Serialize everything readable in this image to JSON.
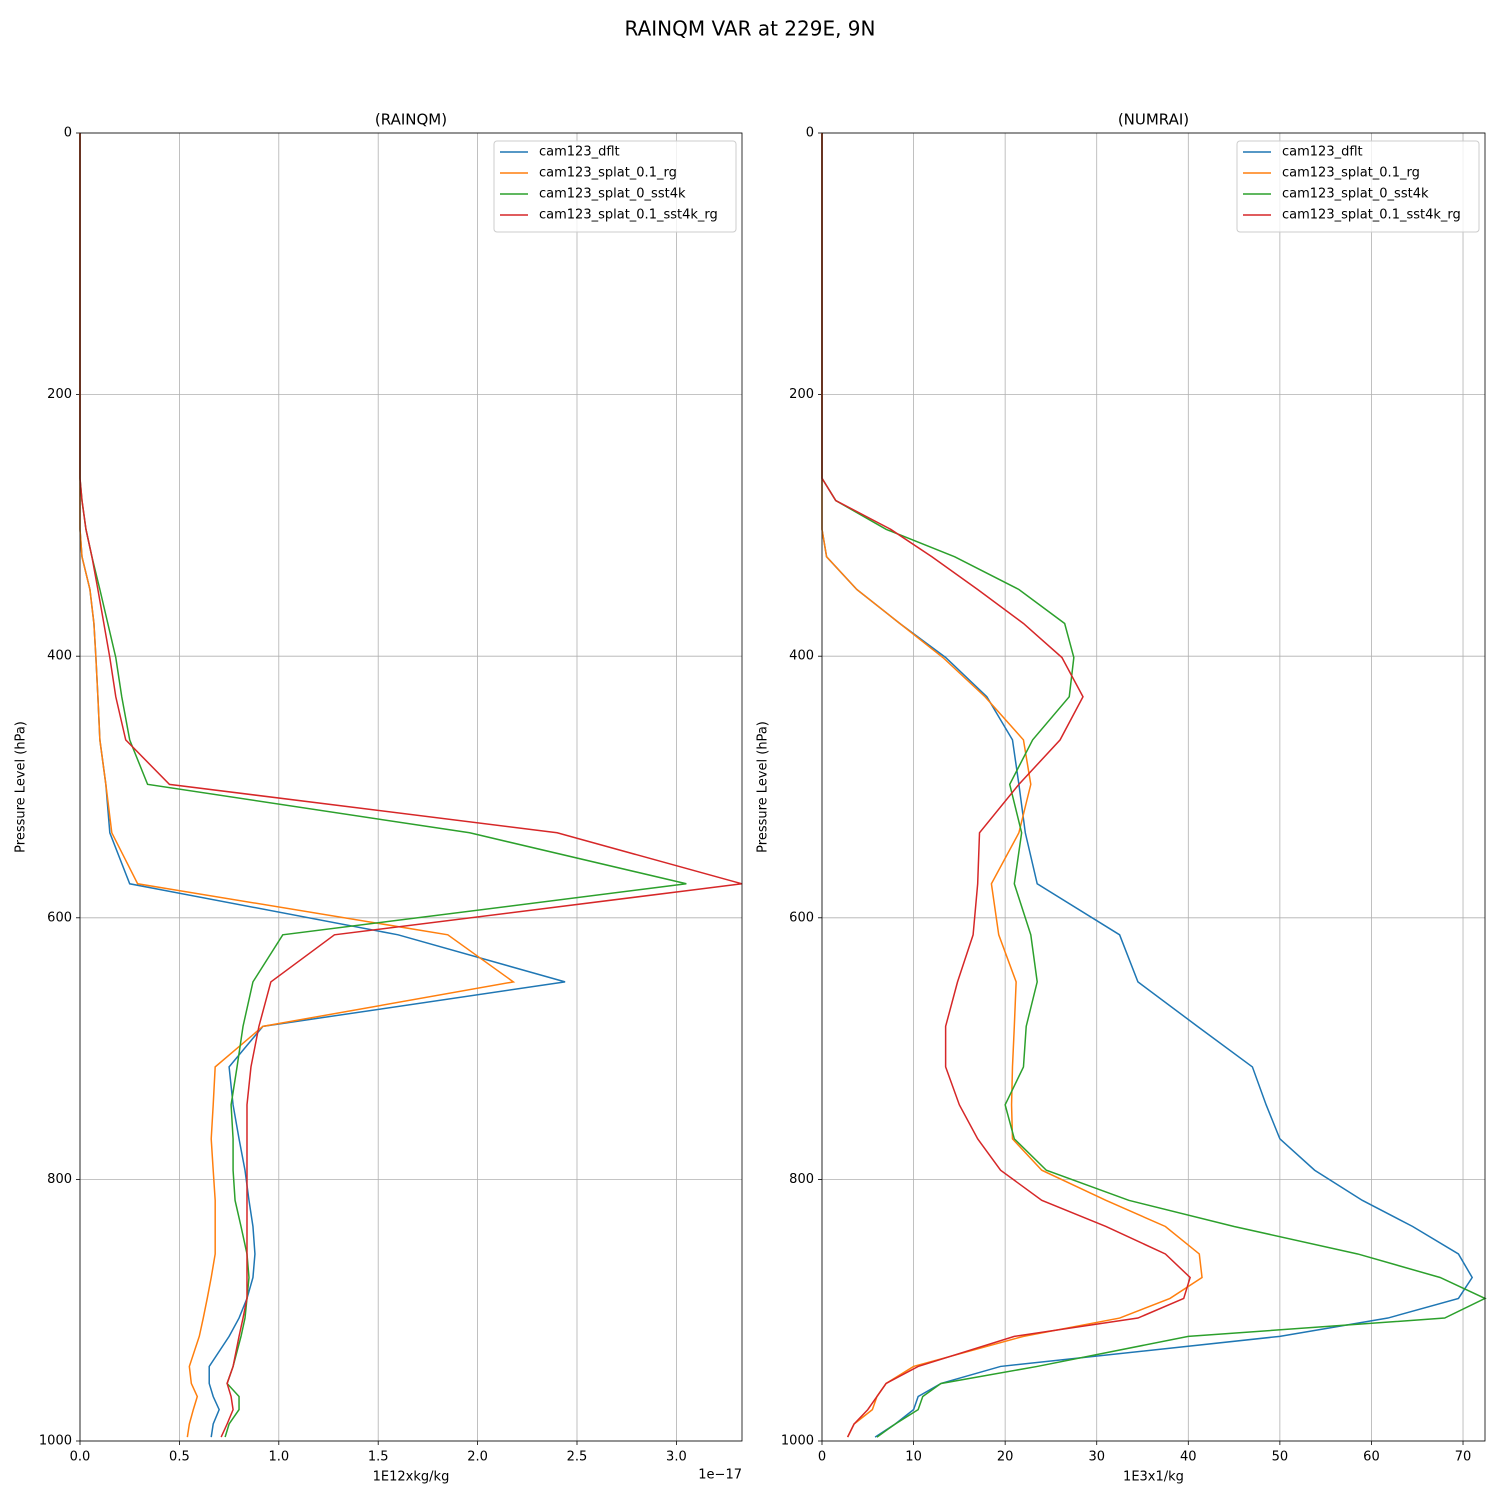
{
  "title": "RAINQM VAR at 229E, 9N",
  "chart_data": [
    {
      "type": "line",
      "title": "(RAINQM)",
      "xlabel": "1E12xkg/kg",
      "ylabel": "Pressure Level (hPa)",
      "x_offset_label": "1e−17",
      "grid": true,
      "legend": "upper right",
      "xlim": [
        0,
        3.33
      ],
      "xticks": [
        {
          "value": 0,
          "label": "0.0"
        },
        {
          "value": 0.5,
          "label": "0.5"
        },
        {
          "value": 1,
          "label": "1.0"
        },
        {
          "value": 1.5,
          "label": "1.5"
        },
        {
          "value": 2,
          "label": "2.0"
        },
        {
          "value": 2.5,
          "label": "2.5"
        },
        {
          "value": 3,
          "label": "3.0"
        }
      ],
      "ylim": [
        1000,
        0
      ],
      "yticks": [
        0,
        200,
        400,
        600,
        800,
        1000
      ],
      "y": [
        0,
        264,
        281,
        303,
        324,
        349,
        375,
        401,
        431,
        464,
        498,
        535,
        574,
        613,
        649,
        683,
        714,
        743,
        769,
        793,
        816,
        836,
        857,
        875,
        891,
        906,
        920,
        943,
        956,
        966,
        976,
        987,
        997
      ],
      "series": [
        {
          "name": "cam123_dflt",
          "color": "#1f77b4",
          "values": [
            0,
            0,
            0,
            0,
            0.01,
            0.05,
            0.07,
            0.08,
            0.09,
            0.1,
            0.13,
            0.15,
            0.25,
            1.6,
            2.44,
            0.92,
            0.75,
            0.77,
            0.8,
            0.83,
            0.85,
            0.87,
            0.88,
            0.87,
            0.84,
            0.8,
            0.75,
            0.65,
            0.65,
            0.67,
            0.7,
            0.67,
            0.66
          ]
        },
        {
          "name": "cam123_splat_0.1_rg",
          "color": "#ff7f0e",
          "values": [
            0,
            0,
            0,
            0,
            0.01,
            0.05,
            0.07,
            0.08,
            0.09,
            0.1,
            0.13,
            0.16,
            0.29,
            1.85,
            2.18,
            0.92,
            0.68,
            0.67,
            0.66,
            0.67,
            0.68,
            0.68,
            0.68,
            0.66,
            0.64,
            0.62,
            0.6,
            0.55,
            0.56,
            0.59,
            0.57,
            0.55,
            0.54
          ]
        },
        {
          "name": "cam123_splat_0_sst4k",
          "color": "#2ca02c",
          "values": [
            0,
            0,
            0.01,
            0.03,
            0.06,
            0.1,
            0.14,
            0.18,
            0.21,
            0.25,
            0.34,
            1.96,
            3.05,
            1.02,
            0.87,
            0.82,
            0.79,
            0.76,
            0.77,
            0.77,
            0.78,
            0.81,
            0.84,
            0.85,
            0.84,
            0.83,
            0.81,
            0.77,
            0.74,
            0.8,
            0.8,
            0.75,
            0.73
          ]
        },
        {
          "name": "cam123_splat_0.1_sst4k_rg",
          "color": "#d62728",
          "values": [
            0,
            0,
            0.01,
            0.03,
            0.06,
            0.09,
            0.12,
            0.15,
            0.18,
            0.23,
            0.45,
            2.4,
            3.33,
            1.28,
            0.96,
            0.9,
            0.86,
            0.84,
            0.84,
            0.84,
            0.84,
            0.84,
            0.84,
            0.84,
            0.84,
            0.82,
            0.8,
            0.77,
            0.74,
            0.76,
            0.77,
            0.74,
            0.71
          ]
        }
      ]
    },
    {
      "type": "line",
      "title": "(NUMRAI)",
      "xlabel": "1E3x1/kg",
      "ylabel": "Pressure Level (hPa)",
      "grid": true,
      "legend": "upper right",
      "xlim": [
        0,
        72.4
      ],
      "xticks": [
        0,
        10,
        20,
        30,
        40,
        50,
        60,
        70
      ],
      "ylim": [
        1000,
        0
      ],
      "yticks": [
        0,
        200,
        400,
        600,
        800,
        1000
      ],
      "y": [
        0,
        264,
        281,
        303,
        324,
        349,
        375,
        401,
        431,
        464,
        498,
        535,
        574,
        613,
        649,
        683,
        714,
        743,
        769,
        793,
        816,
        836,
        857,
        875,
        891,
        906,
        920,
        943,
        956,
        966,
        976,
        987,
        997
      ],
      "series": [
        {
          "name": "cam123_dflt",
          "color": "#1f77b4",
          "values": [
            0,
            0,
            0,
            0,
            0.5,
            3.8,
            8.5,
            13.5,
            18,
            20.8,
            21.5,
            22.2,
            23.5,
            32.5,
            34.5,
            41,
            47,
            48.5,
            50,
            53.8,
            59,
            64.5,
            69.5,
            71,
            69.5,
            61.8,
            50,
            19.5,
            13,
            10.5,
            10,
            8,
            5.8
          ]
        },
        {
          "name": "cam123_splat_0.1_rg",
          "color": "#ff7f0e",
          "values": [
            0,
            0,
            0,
            0,
            0.5,
            3.8,
            8.5,
            13.2,
            17.8,
            22,
            22.8,
            21.5,
            18.5,
            19.3,
            21.2,
            21,
            20.8,
            20.7,
            20.8,
            24,
            31,
            37.5,
            41.2,
            41.5,
            38,
            32.5,
            22,
            10,
            7,
            6,
            5.5,
            3.5,
            2.8
          ]
        },
        {
          "name": "cam123_splat_0_sst4k",
          "color": "#2ca02c",
          "values": [
            0,
            0,
            1.5,
            7,
            14.5,
            21.5,
            26.5,
            27.5,
            27,
            23,
            20.5,
            21.8,
            21,
            22.8,
            23.5,
            22.3,
            22,
            20,
            21,
            24.5,
            33.5,
            45,
            58.5,
            67.5,
            72.4,
            68,
            40,
            23.5,
            13,
            11,
            10.5,
            8,
            6
          ]
        },
        {
          "name": "cam123_splat_0.1_sst4k_rg",
          "color": "#d62728",
          "values": [
            0,
            0,
            1.5,
            7.5,
            12,
            17,
            22,
            26.2,
            28.5,
            26,
            21.5,
            17.2,
            17,
            16.5,
            14.8,
            13.5,
            13.5,
            15,
            17,
            19.5,
            24,
            31,
            37.5,
            40.2,
            39.5,
            34.5,
            21,
            10.5,
            7,
            6,
            5,
            3.5,
            2.8
          ]
        }
      ]
    }
  ]
}
